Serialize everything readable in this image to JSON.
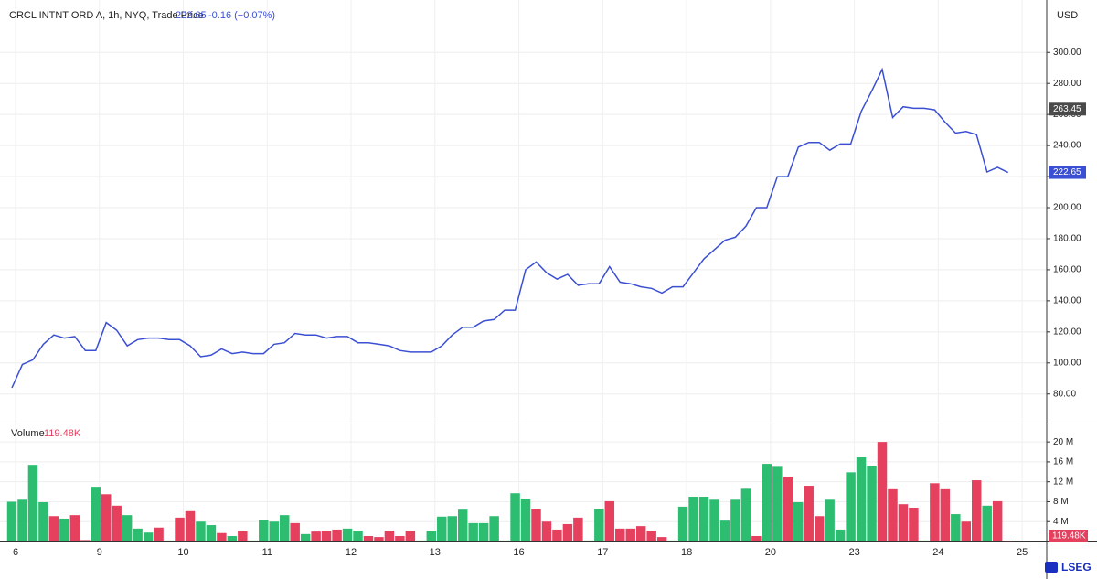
{
  "brand": "LSEG",
  "chart_data": [
    {
      "type": "line",
      "title": "CRCL INTNT ORD A, 1h, NYQ, Trade Price",
      "last_value": 222.65,
      "change_label": "-0.16 (−0.07%)",
      "y_label": "USD",
      "color": "#3b4fd2",
      "grid": true,
      "ylim": [
        61,
        329
      ],
      "yticks": [
        {
          "value": 80,
          "label": "80.00"
        },
        {
          "value": 100,
          "label": "100.00"
        },
        {
          "value": 120,
          "label": "120.00"
        },
        {
          "value": 140,
          "label": "140.00"
        },
        {
          "value": 160,
          "label": "160.00"
        },
        {
          "value": 180,
          "label": "180.00"
        },
        {
          "value": 200,
          "label": "200.00"
        },
        {
          "value": 220,
          "label": "220.00"
        },
        {
          "value": 240,
          "label": "240.00"
        },
        {
          "value": 260,
          "label": "260.00"
        },
        {
          "value": 280,
          "label": "280.00"
        },
        {
          "value": 300,
          "label": "300.00"
        }
      ],
      "price_tags": [
        {
          "value": 263.45,
          "color": "#4a4a4a"
        },
        {
          "value": 222.65,
          "color": "#3b4fd2"
        }
      ],
      "values": [
        84,
        99,
        102,
        112,
        118,
        116,
        117,
        108,
        108,
        126,
        121,
        111,
        115,
        116,
        116,
        115,
        115,
        111,
        104,
        105,
        109,
        106,
        107,
        106,
        106,
        112,
        113,
        119,
        118,
        118,
        116,
        117,
        117,
        113,
        113,
        112,
        111,
        108,
        107,
        107,
        107,
        111,
        118,
        123,
        123,
        127,
        128,
        134,
        134,
        160,
        165,
        158,
        154,
        157,
        150,
        151,
        151,
        162,
        152,
        151,
        149,
        148,
        145,
        149,
        149,
        158,
        167,
        173,
        179,
        181,
        188,
        200,
        200,
        220,
        220,
        239,
        242,
        242,
        237,
        241,
        241,
        262,
        275,
        289,
        258,
        265,
        264,
        264,
        263,
        255,
        248,
        249,
        247,
        223,
        226,
        222.65,
        null
      ]
    },
    {
      "type": "bar",
      "title": "Volume",
      "last_value": 0.11948,
      "value_label": "119.48K",
      "tag_color": "#e5405e",
      "grid": true,
      "ylim": [
        0,
        23.7
      ],
      "yticks": [
        {
          "value": 4,
          "label": "4 M"
        },
        {
          "value": 8,
          "label": "8 M"
        },
        {
          "value": 12,
          "label": "12 M"
        },
        {
          "value": 16,
          "label": "16 M"
        },
        {
          "value": 20,
          "label": "20 M"
        }
      ],
      "categories": [
        "6",
        null,
        null,
        null,
        null,
        null,
        null,
        null,
        "9",
        null,
        null,
        null,
        null,
        null,
        null,
        null,
        "10",
        null,
        null,
        null,
        null,
        null,
        null,
        null,
        "11",
        null,
        null,
        null,
        null,
        null,
        null,
        null,
        "12",
        null,
        null,
        null,
        null,
        null,
        null,
        null,
        "13",
        null,
        null,
        null,
        null,
        null,
        null,
        null,
        "16",
        null,
        null,
        null,
        null,
        null,
        null,
        null,
        "17",
        null,
        null,
        null,
        null,
        null,
        null,
        null,
        "18",
        null,
        null,
        null,
        null,
        null,
        null,
        null,
        "20",
        null,
        null,
        null,
        null,
        null,
        null,
        null,
        "23",
        null,
        null,
        null,
        null,
        null,
        null,
        null,
        "24",
        null,
        null,
        null,
        null,
        null,
        null,
        null,
        "25"
      ],
      "values": [
        8.0,
        8.4,
        15.4,
        7.9,
        5.1,
        4.6,
        5.3,
        0.3,
        11.0,
        9.5,
        7.2,
        5.3,
        2.6,
        1.8,
        2.8,
        0.2,
        4.8,
        6.1,
        4.0,
        3.3,
        1.7,
        1.1,
        2.2,
        0.2,
        4.4,
        4.0,
        5.3,
        3.7,
        1.5,
        2.0,
        2.2,
        2.4,
        2.6,
        2.2,
        1.1,
        0.9,
        2.2,
        1.1,
        2.2,
        0.2,
        2.2,
        5.0,
        5.1,
        6.4,
        3.7,
        3.7,
        5.1,
        0.2,
        9.7,
        8.6,
        6.6,
        4.0,
        2.4,
        3.5,
        4.8,
        0.2,
        6.6,
        8.1,
        2.6,
        2.6,
        3.1,
        2.2,
        0.9,
        0.2,
        7.0,
        9.0,
        9.0,
        8.4,
        4.2,
        8.4,
        10.6,
        1.1,
        15.6,
        15.0,
        13.0,
        7.9,
        11.2,
        5.1,
        8.4,
        2.4,
        13.9,
        16.9,
        15.2,
        20.0,
        10.5,
        7.5,
        6.8,
        0.2,
        11.7,
        10.5,
        5.5,
        4.0,
        12.3,
        7.2,
        8.1,
        0.11948,
        null
      ],
      "colors": [
        "#2dbd71",
        "#2dbd71",
        "#2dbd71",
        "#2dbd71",
        "#e5405e",
        "#2dbd71",
        "#e5405e",
        "#e5405e",
        "#2dbd71",
        "#e5405e",
        "#e5405e",
        "#2dbd71",
        "#2dbd71",
        "#2dbd71",
        "#e5405e",
        "#2dbd71",
        "#e5405e",
        "#e5405e",
        "#2dbd71",
        "#2dbd71",
        "#e5405e",
        "#2dbd71",
        "#e5405e",
        "#2dbd71",
        "#2dbd71",
        "#2dbd71",
        "#2dbd71",
        "#e5405e",
        "#2dbd71",
        "#e5405e",
        "#e5405e",
        "#e5405e",
        "#2dbd71",
        "#2dbd71",
        "#e5405e",
        "#e5405e",
        "#e5405e",
        "#e5405e",
        "#e5405e",
        "#2dbd71",
        "#2dbd71",
        "#2dbd71",
        "#2dbd71",
        "#2dbd71",
        "#2dbd71",
        "#2dbd71",
        "#2dbd71",
        "#2dbd71",
        "#2dbd71",
        "#2dbd71",
        "#e5405e",
        "#e5405e",
        "#e5405e",
        "#e5405e",
        "#e5405e",
        "#2dbd71",
        "#2dbd71",
        "#e5405e",
        "#e5405e",
        "#e5405e",
        "#e5405e",
        "#e5405e",
        "#e5405e",
        "#2dbd71",
        "#2dbd71",
        "#2dbd71",
        "#2dbd71",
        "#2dbd71",
        "#2dbd71",
        "#2dbd71",
        "#2dbd71",
        "#e5405e",
        "#2dbd71",
        "#2dbd71",
        "#e5405e",
        "#2dbd71",
        "#e5405e",
        "#e5405e",
        "#2dbd71",
        "#2dbd71",
        "#2dbd71",
        "#2dbd71",
        "#2dbd71",
        "#e5405e",
        "#e5405e",
        "#e5405e",
        "#e5405e",
        "#2dbd71",
        "#e5405e",
        "#e5405e",
        "#2dbd71",
        "#e5405e",
        "#e5405e",
        "#2dbd71",
        "#e5405e",
        "#e5405e",
        null
      ]
    }
  ]
}
